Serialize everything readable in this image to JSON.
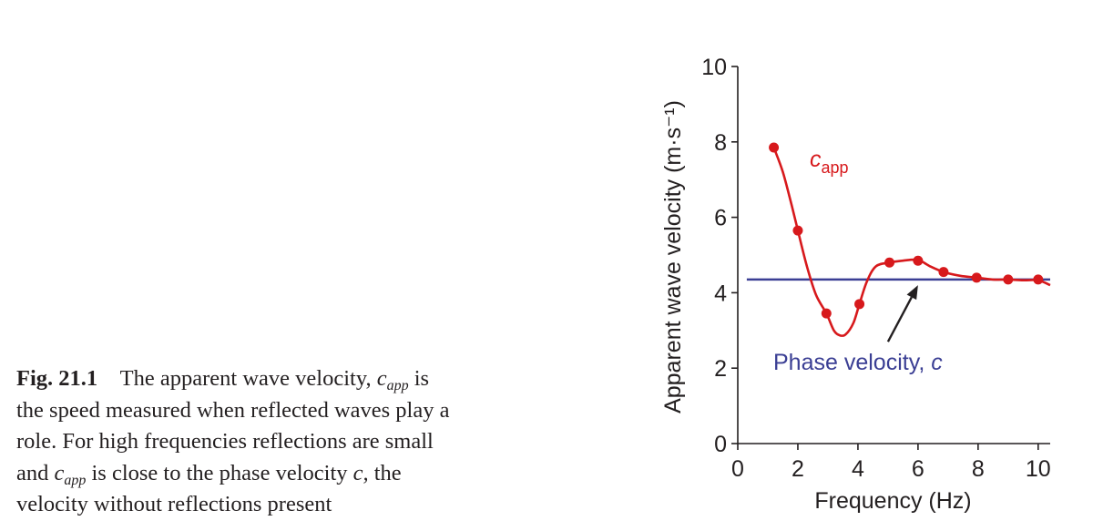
{
  "caption": {
    "fig_label": "Fig. 21.1",
    "parts": [
      {
        "text": "The apparent wave velocity, "
      },
      {
        "text": "c",
        "italic": true
      },
      {
        "text": "app",
        "sub": true,
        "italic": true
      },
      {
        "text": " is"
      },
      {
        "text": "\n"
      },
      {
        "text": "the speed measured when reflected waves play a"
      },
      {
        "text": "\n"
      },
      {
        "text": "role. For high frequencies reflections are small"
      },
      {
        "text": "\n"
      },
      {
        "text": "and "
      },
      {
        "text": "c",
        "italic": true
      },
      {
        "text": "app",
        "sub": true,
        "italic": true
      },
      {
        "text": " is close to the phase velocity "
      },
      {
        "text": "c,",
        "italic": true
      },
      {
        "text": " the"
      },
      {
        "text": "\n"
      },
      {
        "text": "velocity without reflections present"
      }
    ]
  },
  "chart_data": {
    "type": "line",
    "xlabel": "Frequency (Hz)",
    "ylabel": "Apparent wave velocity (m·s⁻¹)",
    "xlim": [
      0,
      10.4
    ],
    "ylim": [
      0,
      10
    ],
    "xticks": [
      0,
      2,
      4,
      6,
      8,
      10
    ],
    "yticks": [
      0,
      2,
      4,
      6,
      8,
      10
    ],
    "grid": false,
    "series": [
      {
        "name": "c_app",
        "label_main": "c",
        "label_sub": "app",
        "color": "#d7191c",
        "points_x": [
          1.2,
          2.0,
          2.95,
          4.05,
          5.05,
          6.0,
          6.85,
          7.95,
          9.0,
          10.0
        ],
        "points_y": [
          7.85,
          5.65,
          3.45,
          3.7,
          4.8,
          4.85,
          4.55,
          4.4,
          4.35,
          4.35
        ],
        "curve": [
          [
            1.2,
            7.85
          ],
          [
            1.5,
            7.2
          ],
          [
            1.8,
            6.3
          ],
          [
            2.0,
            5.65
          ],
          [
            2.3,
            4.7
          ],
          [
            2.6,
            3.95
          ],
          [
            2.95,
            3.45
          ],
          [
            3.2,
            3.0
          ],
          [
            3.4,
            2.87
          ],
          [
            3.6,
            2.9
          ],
          [
            3.85,
            3.2
          ],
          [
            4.05,
            3.7
          ],
          [
            4.3,
            4.3
          ],
          [
            4.6,
            4.7
          ],
          [
            5.05,
            4.8
          ],
          [
            5.5,
            4.85
          ],
          [
            6.0,
            4.87
          ],
          [
            6.4,
            4.7
          ],
          [
            6.85,
            4.55
          ],
          [
            7.4,
            4.45
          ],
          [
            7.95,
            4.4
          ],
          [
            8.5,
            4.35
          ],
          [
            9.0,
            4.35
          ],
          [
            9.5,
            4.33
          ],
          [
            10.0,
            4.33
          ],
          [
            10.4,
            4.2
          ]
        ]
      },
      {
        "name": "Phase velocity",
        "label_main": "Phase velocity, ",
        "label_italic": "c",
        "color": "#3b3f94",
        "constant": 4.35,
        "x_range": [
          0.3,
          10.4
        ]
      }
    ],
    "annotation": {
      "arrow_from": [
        5.0,
        2.7
      ],
      "arrow_to": [
        6.0,
        4.2
      ]
    }
  }
}
